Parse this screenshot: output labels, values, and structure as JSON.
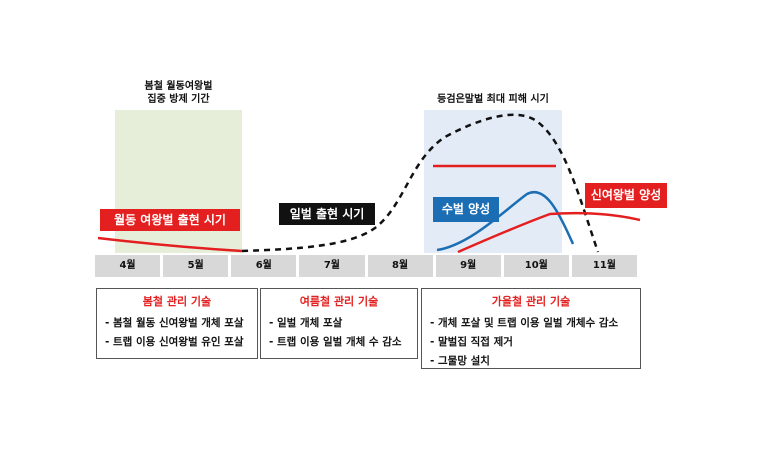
{
  "shading": {
    "spring_label_line1": "봄철 월동여왕벌",
    "spring_label_line2": "집중 방제 기간",
    "peak_label": "등검은말벌 최대 피해 시기"
  },
  "pills": {
    "overwinter_queen": "월동 여왕벌 출현 시기",
    "worker": "일벌 출현 시기",
    "drone": "수벌 양성",
    "new_queen": "신여왕벌 양성"
  },
  "months": [
    "4월",
    "5월",
    "6월",
    "7월",
    "8월",
    "9월",
    "10월",
    "11월"
  ],
  "techniques": {
    "spring": {
      "title": "봄철 관리 기술",
      "items": [
        "- 봄철 월동 신여왕벌 개체 포살",
        "- 트랩 이용 신여왕벌 유인 포살"
      ]
    },
    "summer": {
      "title": "여름철 관리 기술",
      "items": [
        "- 일벌 개체 포살",
        "- 트랩 이용 일벌 개체 수 감소"
      ]
    },
    "autumn": {
      "title": "가을철 관리 기술",
      "items": [
        "- 개체 포살 및 트랩 이용 일벌 개체수 감소",
        "- 말벌집 직접 제거",
        "- 그물망 설치"
      ]
    }
  },
  "colors": {
    "red": "#e41f1f",
    "blue": "#1b6eb4",
    "black": "#111111",
    "green_shade": "#e6eed9",
    "blue_shade": "#e3ecf6"
  }
}
